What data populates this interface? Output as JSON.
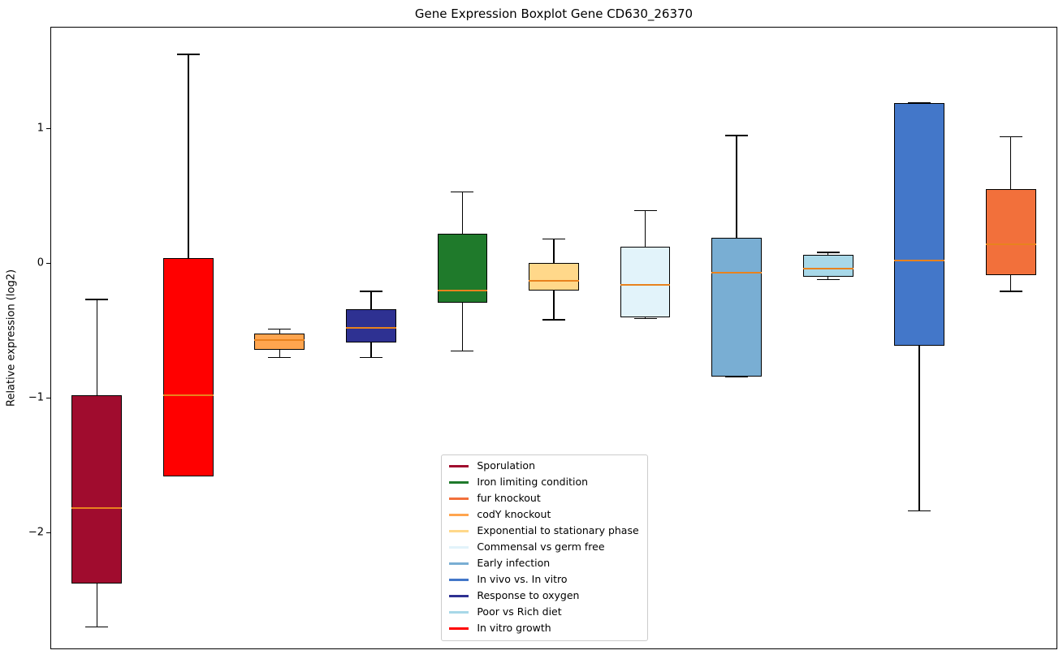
{
  "chart_data": {
    "type": "boxplot",
    "title": "Gene Expression Boxplot Gene CD630_26370",
    "ylabel": "Relative expression (log2)",
    "xlabel": "",
    "ylim": [
      -2.86,
      1.75
    ],
    "yticks": [
      1,
      0,
      -1,
      -2
    ],
    "ytick_labels": [
      "1",
      "0",
      "−1",
      "−2"
    ],
    "grid": false,
    "median_color": "#e8821e",
    "legend_position": "lower center inside",
    "boxes": [
      {
        "label": "Sporulation",
        "color": "#a00c2e",
        "whislo": -2.7,
        "q1": -2.38,
        "med": -1.82,
        "q3": -0.98,
        "whishi": -0.27
      },
      {
        "label": "In vitro growth",
        "color": "#ff0000",
        "whislo": -1.58,
        "q1": -1.58,
        "med": -0.98,
        "q3": 0.04,
        "whishi": 1.55
      },
      {
        "label": "codY knockout",
        "color": "#ffa54f",
        "whislo": -0.7,
        "q1": -0.64,
        "med": -0.57,
        "q3": -0.52,
        "whishi": -0.49
      },
      {
        "label": "Response to oxygen",
        "color": "#2e3192",
        "whislo": -0.7,
        "q1": -0.59,
        "med": -0.48,
        "q3": -0.34,
        "whishi": -0.21
      },
      {
        "label": "Iron limiting condition",
        "color": "#1f7a2b",
        "whislo": -0.65,
        "q1": -0.29,
        "med": -0.2,
        "q3": 0.22,
        "whishi": 0.53
      },
      {
        "label": "Exponential to stationary phase",
        "color": "#ffd88a",
        "whislo": -0.42,
        "q1": -0.2,
        "med": -0.13,
        "q3": 0.0,
        "whishi": 0.18
      },
      {
        "label": "Commensal vs germ free",
        "color": "#e2f3fa",
        "whislo": -0.41,
        "q1": -0.4,
        "med": -0.16,
        "q3": 0.12,
        "whishi": 0.39
      },
      {
        "label": "Early infection",
        "color": "#79aed3",
        "whislo": -0.84,
        "q1": -0.84,
        "med": -0.07,
        "q3": 0.19,
        "whishi": 0.95
      },
      {
        "label": "Poor vs Rich diet",
        "color": "#a8d8e8",
        "whislo": -0.12,
        "q1": -0.1,
        "med": -0.04,
        "q3": 0.06,
        "whishi": 0.08
      },
      {
        "label": "In vivo vs. In vitro",
        "color": "#4377c9",
        "whislo": -1.84,
        "q1": -0.61,
        "med": 0.02,
        "q3": 1.19,
        "whishi": 1.19
      },
      {
        "label": "fur knockout",
        "color": "#f2703b",
        "whislo": -0.21,
        "q1": -0.09,
        "med": 0.14,
        "q3": 0.55,
        "whishi": 0.94
      }
    ],
    "legend": [
      {
        "label": "Sporulation",
        "color": "#a00c2e"
      },
      {
        "label": "Iron limiting condition",
        "color": "#1f7a2b"
      },
      {
        "label": "fur knockout",
        "color": "#f2703b"
      },
      {
        "label": "codY knockout",
        "color": "#ffa54f"
      },
      {
        "label": "Exponential to stationary phase",
        "color": "#ffd88a"
      },
      {
        "label": "Commensal vs germ free",
        "color": "#e2f3fa"
      },
      {
        "label": "Early infection",
        "color": "#79aed3"
      },
      {
        "label": "In vivo vs. In vitro",
        "color": "#4377c9"
      },
      {
        "label": "Response to oxygen",
        "color": "#2e3192"
      },
      {
        "label": "Poor vs Rich diet",
        "color": "#a8d8e8"
      },
      {
        "label": "In vitro growth",
        "color": "#ff0000"
      }
    ]
  }
}
